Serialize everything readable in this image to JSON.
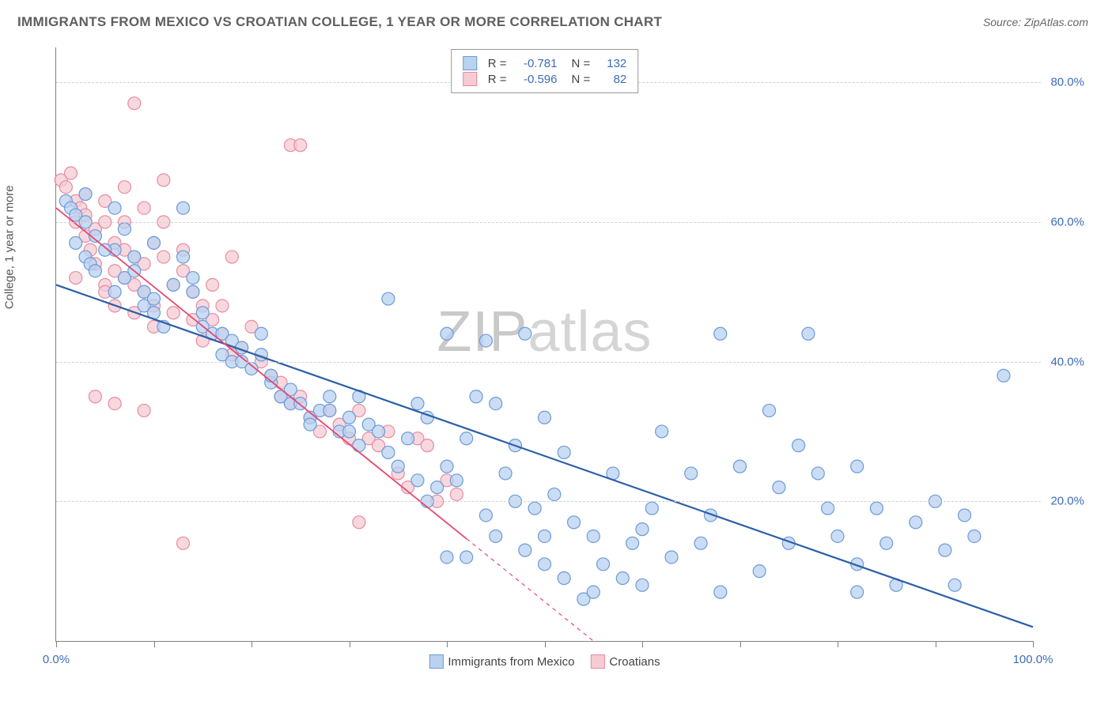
{
  "title": "IMMIGRANTS FROM MEXICO VS CROATIAN COLLEGE, 1 YEAR OR MORE CORRELATION CHART",
  "source": "Source: ZipAtlas.com",
  "y_label": "College, 1 year or more",
  "watermark_bold": "ZIP",
  "watermark_thin": "atlas",
  "chart": {
    "type": "scatter",
    "xlim": [
      0,
      100
    ],
    "ylim": [
      0,
      85
    ],
    "x_ticks": [
      0,
      10,
      20,
      30,
      40,
      50,
      60,
      70,
      80,
      90,
      100
    ],
    "x_tick_labels": {
      "0": "0.0%",
      "100": "100.0%"
    },
    "y_grid": [
      20,
      40,
      60,
      80
    ],
    "y_tick_labels": {
      "20": "20.0%",
      "40": "40.0%",
      "60": "60.0%",
      "80": "80.0%"
    },
    "background_color": "#ffffff",
    "grid_color": "#d0d0d0",
    "axis_color": "#808080",
    "tick_label_color": "#3b6db8",
    "series": [
      {
        "name": "Immigrants from Mexico",
        "dot_fill": "#b9d2f0",
        "dot_stroke": "#6a9bd8",
        "dot_radius": 8,
        "legend_fill": "#b9d2f0",
        "legend_stroke": "#6a9bd8",
        "line_color": "#2c5fa8",
        "line_width": 2.2,
        "R": "-0.781",
        "N": "132",
        "trend": {
          "x1": 0,
          "y1": 51,
          "x2": 100,
          "y2": 2
        },
        "points": [
          [
            1,
            63
          ],
          [
            1.5,
            62
          ],
          [
            2,
            61
          ],
          [
            3,
            60
          ],
          [
            3,
            64
          ],
          [
            2,
            57
          ],
          [
            4,
            58
          ],
          [
            6,
            62
          ],
          [
            7,
            59
          ],
          [
            6,
            56
          ],
          [
            3,
            55
          ],
          [
            3.5,
            54
          ],
          [
            5,
            56
          ],
          [
            4,
            53
          ],
          [
            6,
            50
          ],
          [
            7,
            52
          ],
          [
            8,
            55
          ],
          [
            8,
            53
          ],
          [
            9,
            50
          ],
          [
            9,
            48
          ],
          [
            10,
            49
          ],
          [
            10,
            57
          ],
          [
            10,
            47
          ],
          [
            11,
            45
          ],
          [
            12,
            51
          ],
          [
            13,
            55
          ],
          [
            13,
            62
          ],
          [
            14,
            52
          ],
          [
            14,
            50
          ],
          [
            15,
            47
          ],
          [
            15,
            45
          ],
          [
            16,
            44
          ],
          [
            17,
            44
          ],
          [
            17,
            41
          ],
          [
            18,
            40
          ],
          [
            18,
            43
          ],
          [
            19,
            42
          ],
          [
            19,
            40
          ],
          [
            20,
            39
          ],
          [
            21,
            41
          ],
          [
            21,
            44
          ],
          [
            22,
            37
          ],
          [
            22,
            38
          ],
          [
            23,
            35
          ],
          [
            24,
            36
          ],
          [
            24,
            34
          ],
          [
            25,
            34
          ],
          [
            26,
            32
          ],
          [
            26,
            31
          ],
          [
            27,
            33
          ],
          [
            28,
            35
          ],
          [
            28,
            33
          ],
          [
            29,
            30
          ],
          [
            30,
            32
          ],
          [
            30,
            30
          ],
          [
            31,
            35
          ],
          [
            31,
            28
          ],
          [
            32,
            31
          ],
          [
            33,
            30
          ],
          [
            34,
            49
          ],
          [
            34,
            27
          ],
          [
            35,
            25
          ],
          [
            36,
            29
          ],
          [
            37,
            34
          ],
          [
            37,
            23
          ],
          [
            38,
            32
          ],
          [
            38,
            20
          ],
          [
            39,
            22
          ],
          [
            40,
            25
          ],
          [
            40,
            44
          ],
          [
            40,
            12
          ],
          [
            41,
            23
          ],
          [
            42,
            29
          ],
          [
            43,
            35
          ],
          [
            44,
            43
          ],
          [
            45,
            34
          ],
          [
            45,
            15
          ],
          [
            46,
            24
          ],
          [
            47,
            28
          ],
          [
            48,
            13
          ],
          [
            48,
            44
          ],
          [
            49,
            19
          ],
          [
            50,
            32
          ],
          [
            50,
            15
          ],
          [
            51,
            21
          ],
          [
            52,
            27
          ],
          [
            53,
            17
          ],
          [
            54,
            6
          ],
          [
            55,
            15
          ],
          [
            56,
            11
          ],
          [
            57,
            24
          ],
          [
            58,
            9
          ],
          [
            59,
            14
          ],
          [
            60,
            16
          ],
          [
            61,
            19
          ],
          [
            62,
            30
          ],
          [
            63,
            12
          ],
          [
            65,
            24
          ],
          [
            66,
            14
          ],
          [
            67,
            18
          ],
          [
            68,
            7
          ],
          [
            68,
            44
          ],
          [
            70,
            25
          ],
          [
            72,
            10
          ],
          [
            73,
            33
          ],
          [
            74,
            22
          ],
          [
            75,
            14
          ],
          [
            76,
            28
          ],
          [
            77,
            44
          ],
          [
            78,
            24
          ],
          [
            79,
            19
          ],
          [
            80,
            15
          ],
          [
            82,
            11
          ],
          [
            82,
            25
          ],
          [
            84,
            19
          ],
          [
            85,
            14
          ],
          [
            86,
            8
          ],
          [
            88,
            17
          ],
          [
            90,
            20
          ],
          [
            91,
            13
          ],
          [
            92,
            8
          ],
          [
            93,
            18
          ],
          [
            94,
            15
          ],
          [
            97,
            38
          ],
          [
            82,
            7
          ],
          [
            60,
            8
          ],
          [
            55,
            7
          ],
          [
            52,
            9
          ],
          [
            50,
            11
          ],
          [
            47,
            20
          ],
          [
            44,
            18
          ],
          [
            42,
            12
          ]
        ]
      },
      {
        "name": "Croatians",
        "dot_fill": "#f6cbd4",
        "dot_stroke": "#e88ba0",
        "dot_radius": 8,
        "legend_fill": "#f6cbd4",
        "legend_stroke": "#e88ba0",
        "line_color": "#e74870",
        "line_width": 1.8,
        "line_dash_after_x": 42,
        "R": "-0.596",
        "N": "82",
        "trend": {
          "x1": 0,
          "y1": 62,
          "x2": 55,
          "y2": 0
        },
        "points": [
          [
            0.5,
            66
          ],
          [
            1,
            65
          ],
          [
            1.5,
            67
          ],
          [
            2,
            63
          ],
          [
            2,
            60
          ],
          [
            2,
            52
          ],
          [
            2.5,
            62
          ],
          [
            3,
            64
          ],
          [
            3,
            61
          ],
          [
            3,
            58
          ],
          [
            3.5,
            56
          ],
          [
            4,
            59
          ],
          [
            4,
            54
          ],
          [
            5,
            63
          ],
          [
            5,
            60
          ],
          [
            5,
            51
          ],
          [
            5,
            50
          ],
          [
            6,
            57
          ],
          [
            6,
            53
          ],
          [
            6,
            48
          ],
          [
            7,
            60
          ],
          [
            7,
            56
          ],
          [
            7,
            65
          ],
          [
            7,
            52
          ],
          [
            8,
            55
          ],
          [
            8,
            51
          ],
          [
            8,
            47
          ],
          [
            8,
            77
          ],
          [
            9,
            54
          ],
          [
            9,
            50
          ],
          [
            9,
            62
          ],
          [
            10,
            57
          ],
          [
            10,
            48
          ],
          [
            10,
            45
          ],
          [
            11,
            60
          ],
          [
            11,
            55
          ],
          [
            11,
            66
          ],
          [
            12,
            51
          ],
          [
            12,
            47
          ],
          [
            13,
            53
          ],
          [
            13,
            56
          ],
          [
            13,
            14
          ],
          [
            14,
            46
          ],
          [
            14,
            50
          ],
          [
            15,
            48
          ],
          [
            15,
            43
          ],
          [
            16,
            51
          ],
          [
            16,
            46
          ],
          [
            17,
            44
          ],
          [
            17,
            48
          ],
          [
            18,
            55
          ],
          [
            18,
            41
          ],
          [
            19,
            42
          ],
          [
            20,
            45
          ],
          [
            21,
            40
          ],
          [
            22,
            38
          ],
          [
            23,
            37
          ],
          [
            23,
            35
          ],
          [
            24,
            34
          ],
          [
            24,
            71
          ],
          [
            25,
            35
          ],
          [
            25,
            71
          ],
          [
            26,
            32
          ],
          [
            27,
            30
          ],
          [
            28,
            33
          ],
          [
            29,
            31
          ],
          [
            30,
            29
          ],
          [
            31,
            17
          ],
          [
            31,
            33
          ],
          [
            32,
            29
          ],
          [
            33,
            28
          ],
          [
            34,
            30
          ],
          [
            35,
            24
          ],
          [
            36,
            22
          ],
          [
            37,
            29
          ],
          [
            38,
            28
          ],
          [
            39,
            20
          ],
          [
            40,
            23
          ],
          [
            41,
            21
          ],
          [
            9,
            33
          ],
          [
            6,
            34
          ],
          [
            4,
            35
          ]
        ]
      }
    ]
  },
  "bottom_legend": [
    {
      "label": "Immigrants from Mexico",
      "fill": "#b9d2f0",
      "stroke": "#6a9bd8"
    },
    {
      "label": "Croatians",
      "fill": "#f6cbd4",
      "stroke": "#e88ba0"
    }
  ]
}
